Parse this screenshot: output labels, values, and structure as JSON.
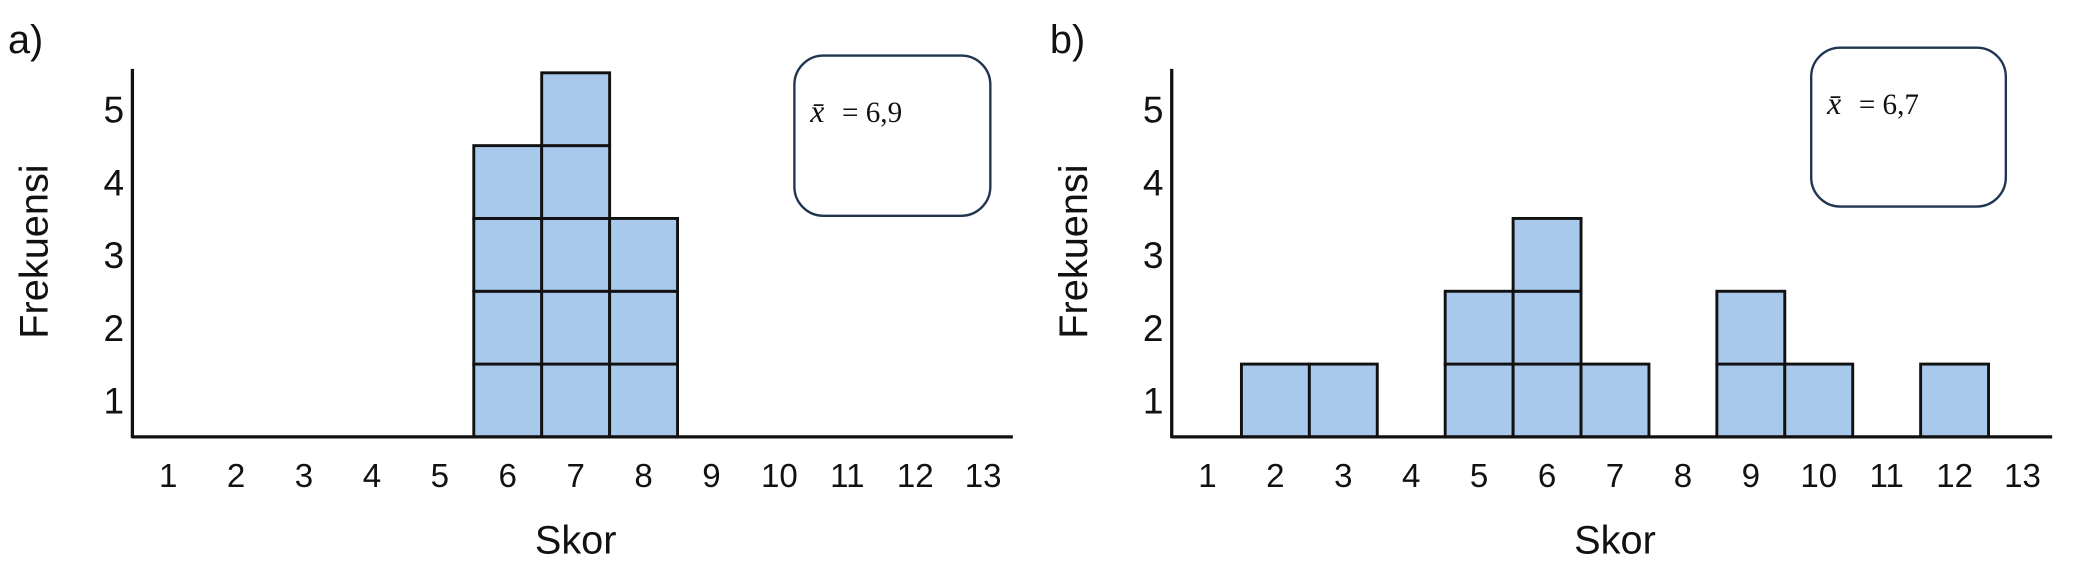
{
  "chart_data": [
    {
      "type": "bar",
      "panel_label": "a)",
      "xlabel": "Skor",
      "ylabel": "Frekuensi",
      "x_ticks": [
        "1",
        "2",
        "3",
        "4",
        "5",
        "6",
        "7",
        "8",
        "9",
        "10",
        "11",
        "12",
        "13"
      ],
      "y_ticks": [
        "1",
        "2",
        "3",
        "4",
        "5"
      ],
      "xlim": [
        1,
        13
      ],
      "ylim": [
        0,
        5
      ],
      "grid": false,
      "style": "stacked unit squares (dot-plot style)",
      "bar_color": "#a9c9ec",
      "x": [
        6,
        7,
        8
      ],
      "values": [
        4,
        5,
        3
      ],
      "annotation": {
        "symbol": "x̄",
        "text": "= 6,9"
      }
    },
    {
      "type": "bar",
      "panel_label": "b)",
      "xlabel": "Skor",
      "ylabel": "Frekuensi",
      "x_ticks": [
        "1",
        "2",
        "3",
        "4",
        "5",
        "6",
        "7",
        "8",
        "9",
        "10",
        "11",
        "12",
        "13"
      ],
      "y_ticks": [
        "1",
        "2",
        "3",
        "4",
        "5"
      ],
      "xlim": [
        1,
        13
      ],
      "ylim": [
        0,
        5
      ],
      "grid": false,
      "style": "stacked unit squares (dot-plot style)",
      "bar_color": "#a9c9ec",
      "x": [
        2,
        3,
        5,
        6,
        7,
        9,
        10,
        12
      ],
      "values": [
        1,
        1,
        2,
        3,
        1,
        2,
        1,
        1
      ],
      "annotation": {
        "symbol": "x̄",
        "text": "= 6,7"
      }
    }
  ]
}
